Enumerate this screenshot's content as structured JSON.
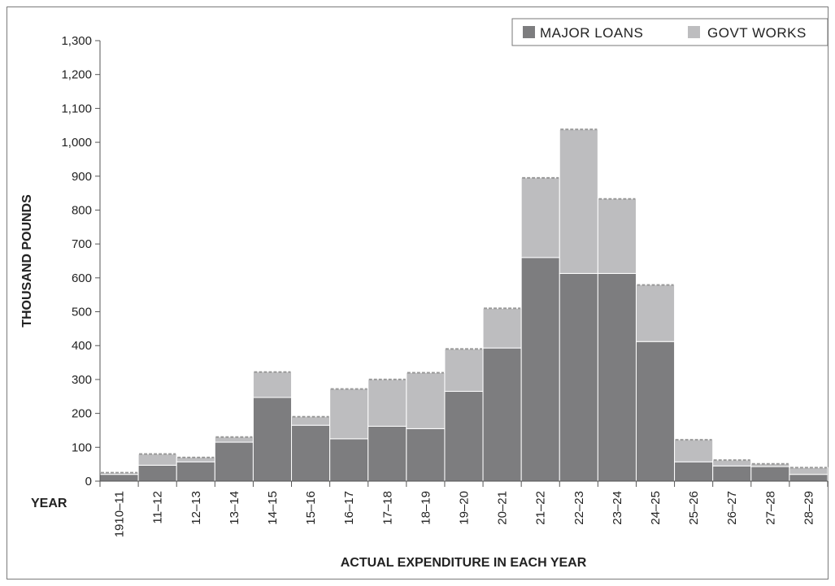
{
  "chart_data": {
    "type": "bar",
    "stacked": true,
    "title": "",
    "xlabel": "ACTUAL EXPENDITURE IN EACH YEAR",
    "ylabel": "THOUSAND POUNDS",
    "x_axis_marker": "YEAR",
    "categories": [
      "1910–11",
      "11–12",
      "12–13",
      "13–14",
      "14–15",
      "15–16",
      "16–17",
      "17–18",
      "18–19",
      "19–20",
      "20–21",
      "21–22",
      "22–23",
      "23–24",
      "24–25",
      "25–26",
      "26–27",
      "27–28",
      "28–29"
    ],
    "series": [
      {
        "name": "MAJOR LOANS",
        "color": "#7d7d7f",
        "values": [
          20,
          47,
          57,
          115,
          247,
          165,
          125,
          162,
          155,
          265,
          393,
          660,
          613,
          613,
          412,
          57,
          45,
          43,
          20
        ]
      },
      {
        "name": "GOVT WORKS",
        "color": "#bdbdbf",
        "values": [
          5,
          33,
          13,
          15,
          75,
          25,
          147,
          138,
          165,
          125,
          117,
          235,
          425,
          220,
          167,
          65,
          17,
          8,
          20
        ]
      }
    ],
    "yticks": [
      "0",
      "100",
      "200",
      "300",
      "400",
      "500",
      "600",
      "700",
      "800",
      "900",
      "1,000",
      "1,100",
      "1,200",
      "1,300"
    ],
    "ylim": [
      0,
      1300
    ],
    "grid": false,
    "legend_position": "top-right"
  }
}
